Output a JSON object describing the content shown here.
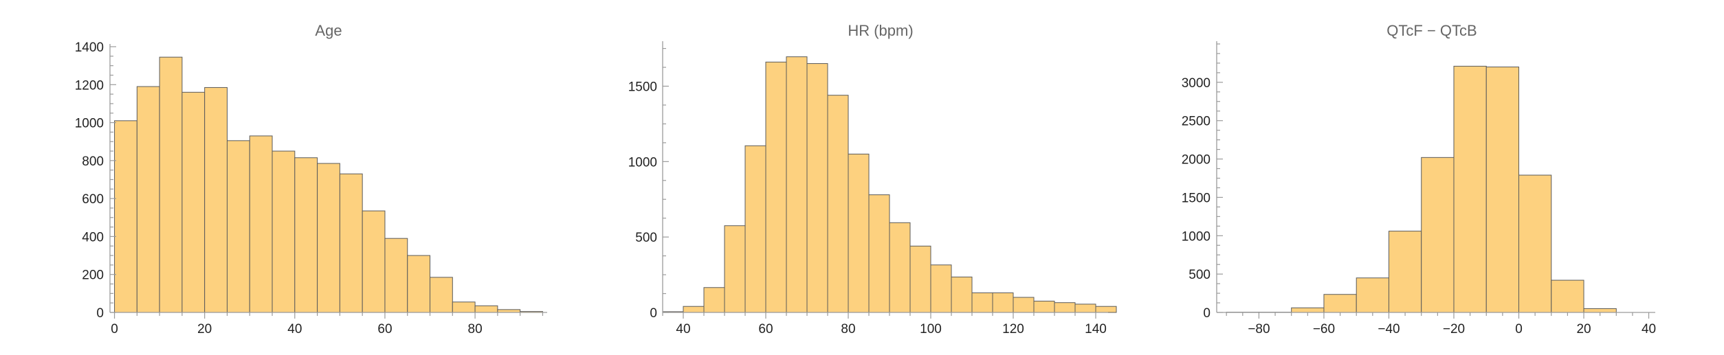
{
  "chart_data": [
    {
      "type": "bar",
      "title": "Age",
      "bin_width": 5,
      "bins": [
        {
          "start": 0,
          "count": 1010
        },
        {
          "start": 5,
          "count": 1190
        },
        {
          "start": 10,
          "count": 1345
        },
        {
          "start": 15,
          "count": 1160
        },
        {
          "start": 20,
          "count": 1185
        },
        {
          "start": 25,
          "count": 905
        },
        {
          "start": 30,
          "count": 930
        },
        {
          "start": 35,
          "count": 850
        },
        {
          "start": 40,
          "count": 815
        },
        {
          "start": 45,
          "count": 785
        },
        {
          "start": 50,
          "count": 730
        },
        {
          "start": 55,
          "count": 535
        },
        {
          "start": 60,
          "count": 390
        },
        {
          "start": 65,
          "count": 300
        },
        {
          "start": 70,
          "count": 185
        },
        {
          "start": 75,
          "count": 55
        },
        {
          "start": 80,
          "count": 35
        },
        {
          "start": 85,
          "count": 15
        },
        {
          "start": 90,
          "count": 5
        }
      ],
      "xlim": [
        -1,
        96
      ],
      "ylim": [
        0,
        1400
      ],
      "xticks": [
        0,
        20,
        40,
        60,
        80
      ],
      "yticks": [
        0,
        200,
        400,
        600,
        800,
        1000,
        1200,
        1400
      ],
      "bar_color": "#fdd17f"
    },
    {
      "type": "bar",
      "title": "HR (bpm)",
      "bin_width": 5,
      "bins": [
        {
          "start": 35,
          "count": 5
        },
        {
          "start": 40,
          "count": 40
        },
        {
          "start": 45,
          "count": 165
        },
        {
          "start": 50,
          "count": 575
        },
        {
          "start": 55,
          "count": 1105
        },
        {
          "start": 60,
          "count": 1660
        },
        {
          "start": 65,
          "count": 1695
        },
        {
          "start": 70,
          "count": 1650
        },
        {
          "start": 75,
          "count": 1440
        },
        {
          "start": 80,
          "count": 1050
        },
        {
          "start": 85,
          "count": 780
        },
        {
          "start": 90,
          "count": 595
        },
        {
          "start": 95,
          "count": 440
        },
        {
          "start": 100,
          "count": 315
        },
        {
          "start": 105,
          "count": 235
        },
        {
          "start": 110,
          "count": 130
        },
        {
          "start": 115,
          "count": 130
        },
        {
          "start": 120,
          "count": 100
        },
        {
          "start": 125,
          "count": 75
        },
        {
          "start": 130,
          "count": 65
        },
        {
          "start": 135,
          "count": 55
        },
        {
          "start": 140,
          "count": 40
        }
      ],
      "xlim": [
        35,
        143
      ],
      "ylim": [
        0,
        1780
      ],
      "xticks": [
        40,
        60,
        80,
        100,
        120,
        140
      ],
      "yticks": [
        0,
        500,
        1000,
        1500
      ],
      "bar_color": "#fdd17f"
    },
    {
      "type": "bar",
      "title": "QTcF − QTcB",
      "bin_width": 10,
      "bins": [
        {
          "start": -90,
          "count": 3
        },
        {
          "start": -80,
          "count": 3
        },
        {
          "start": -70,
          "count": 60
        },
        {
          "start": -60,
          "count": 235
        },
        {
          "start": -50,
          "count": 450
        },
        {
          "start": -40,
          "count": 1060
        },
        {
          "start": -30,
          "count": 2020
        },
        {
          "start": -20,
          "count": 3210
        },
        {
          "start": -10,
          "count": 3200
        },
        {
          "start": 0,
          "count": 1790
        },
        {
          "start": 10,
          "count": 420
        },
        {
          "start": 20,
          "count": 50
        }
      ],
      "xlim": [
        -93,
        42
      ],
      "ylim": [
        0,
        3500
      ],
      "xticks": [
        -80,
        -60,
        -40,
        -20,
        0,
        20,
        40
      ],
      "yticks": [
        0,
        500,
        1000,
        1500,
        2000,
        2500,
        3000
      ],
      "bar_color": "#fdd17f"
    }
  ]
}
